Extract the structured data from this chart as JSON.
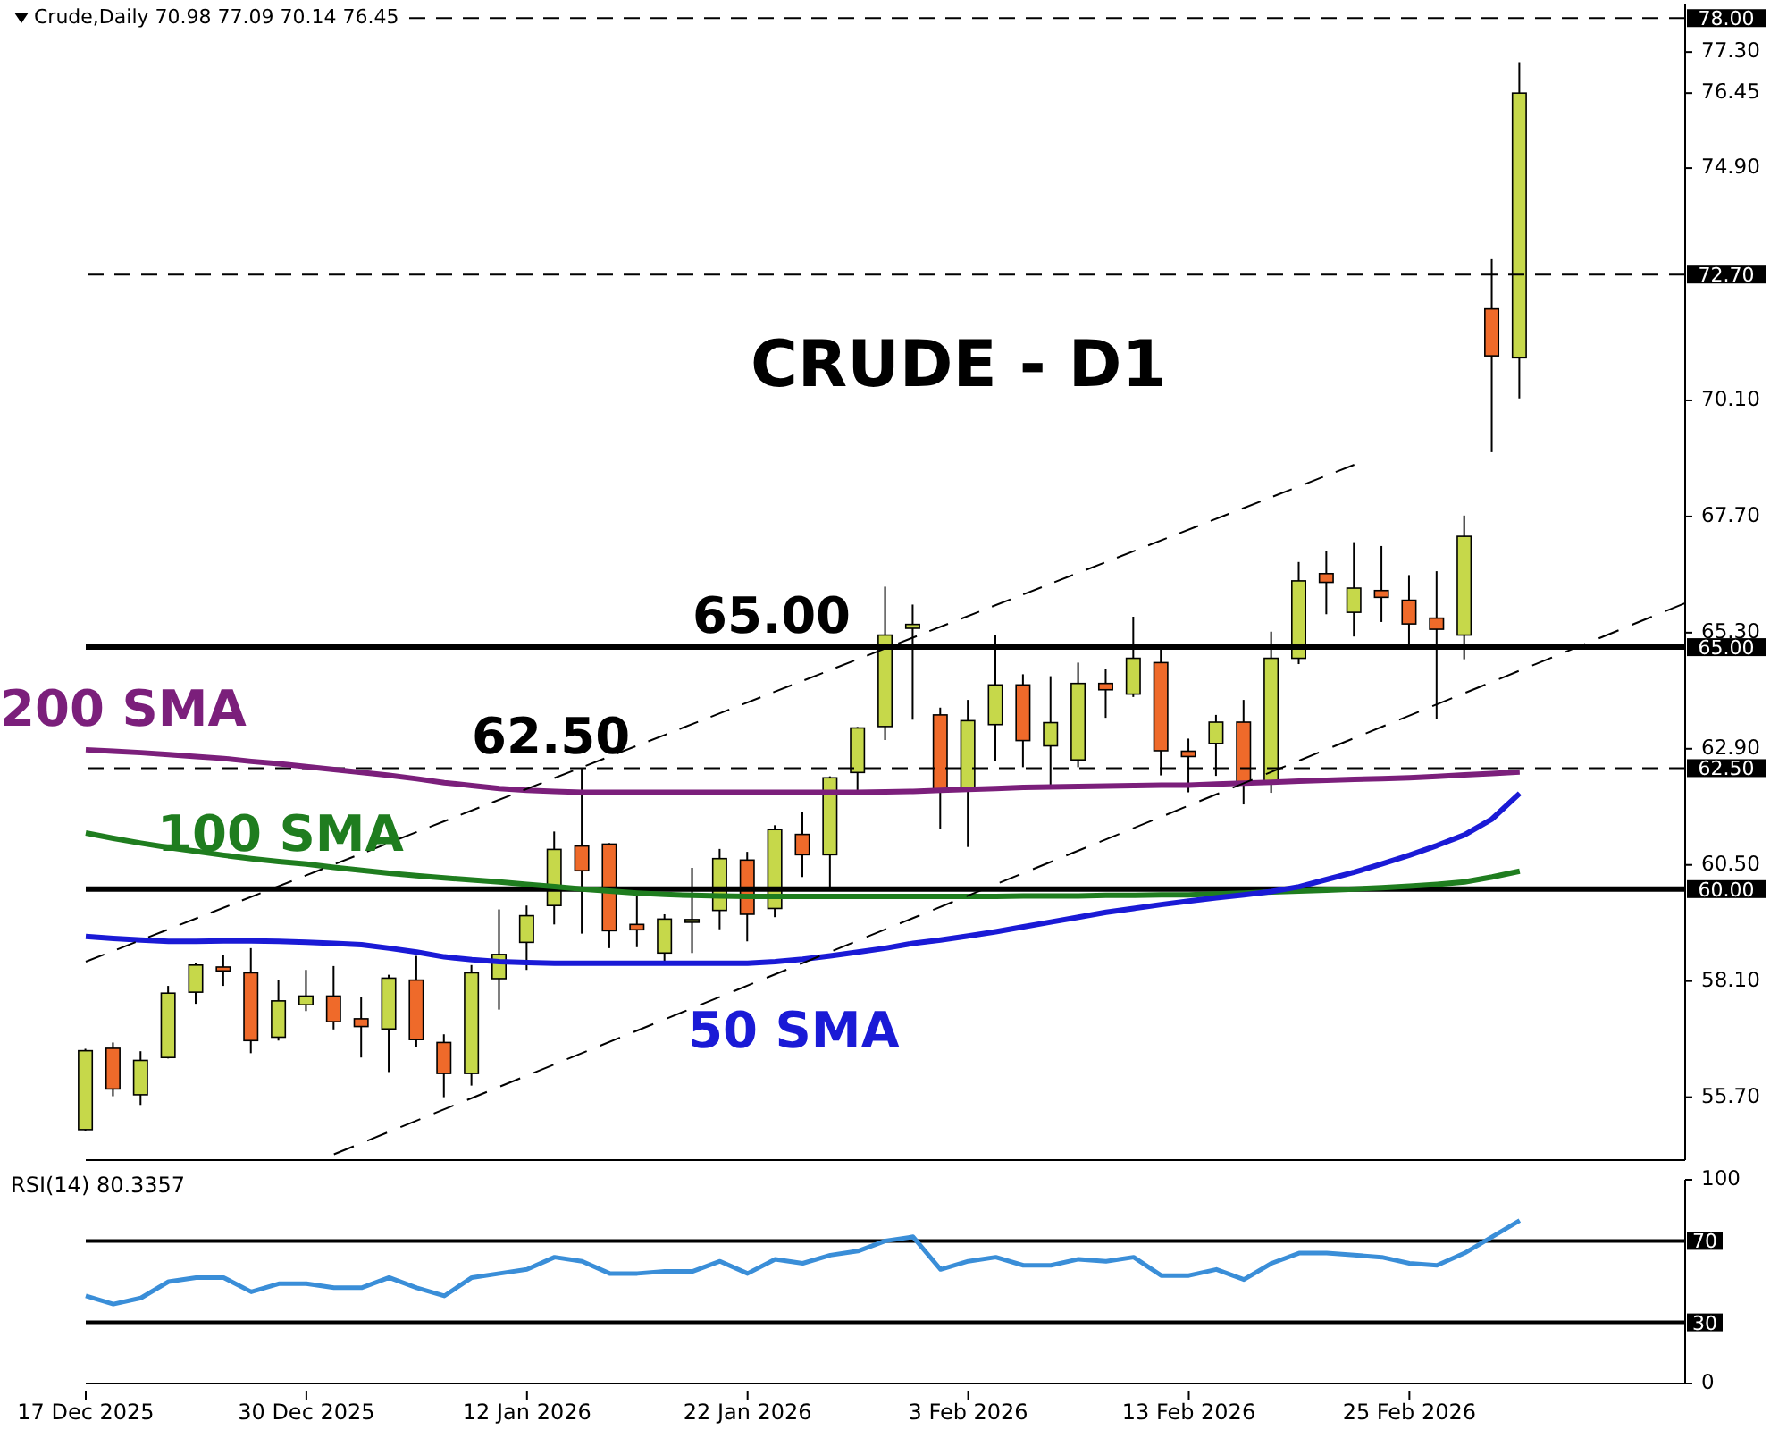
{
  "chart_data": [
    {
      "type": "candlestick",
      "title": "CRUDE - D1",
      "categories": [
        null,
        null,
        null,
        null,
        null,
        null,
        null,
        null,
        null,
        null,
        null,
        null,
        null,
        null,
        null,
        null,
        null,
        null,
        null,
        null,
        null,
        null,
        null,
        null,
        null,
        null,
        null,
        null,
        null,
        null,
        null,
        null,
        null,
        null,
        null,
        null,
        null,
        null,
        null,
        null,
        null,
        null,
        null,
        null,
        null,
        null,
        null,
        null,
        null,
        null,
        null,
        null,
        null,
        null,
        null,
        null,
        null,
        null,
        null
      ],
      "ohlc": [
        [
          55.03,
          56.7,
          55.0,
          56.66
        ],
        [
          56.71,
          56.83,
          55.72,
          55.87
        ],
        [
          55.75,
          56.65,
          55.54,
          56.46
        ],
        [
          56.52,
          58.0,
          56.5,
          57.85
        ],
        [
          57.87,
          58.47,
          57.63,
          58.43
        ],
        [
          58.39,
          58.64,
          58.0,
          58.31
        ],
        [
          58.27,
          58.78,
          56.61,
          56.87
        ],
        [
          56.94,
          58.12,
          56.87,
          57.69
        ],
        [
          57.61,
          58.33,
          57.48,
          57.79
        ],
        [
          57.79,
          58.41,
          57.1,
          57.26
        ],
        [
          57.32,
          57.77,
          56.52,
          57.16
        ],
        [
          57.11,
          58.23,
          56.22,
          58.16
        ],
        [
          58.12,
          58.62,
          56.74,
          56.89
        ],
        [
          56.83,
          57.0,
          55.7,
          56.19
        ],
        [
          56.19,
          58.43,
          55.94,
          58.27
        ],
        [
          58.15,
          59.58,
          57.51,
          58.65
        ],
        [
          58.9,
          59.66,
          58.33,
          59.45
        ],
        [
          59.66,
          61.19,
          59.27,
          60.82
        ],
        [
          60.89,
          62.49,
          59.08,
          60.38
        ],
        [
          60.93,
          60.95,
          58.78,
          59.14
        ],
        [
          59.27,
          59.94,
          58.8,
          59.16
        ],
        [
          58.68,
          59.48,
          58.49,
          59.38
        ],
        [
          59.36,
          60.44,
          58.68,
          59.37
        ],
        [
          59.56,
          60.83,
          59.17,
          60.63
        ],
        [
          60.6,
          60.77,
          58.92,
          59.48
        ],
        [
          59.6,
          61.32,
          59.42,
          61.23
        ],
        [
          61.13,
          61.59,
          60.25,
          60.71
        ],
        [
          60.71,
          62.33,
          60.03,
          62.3
        ],
        [
          62.41,
          63.35,
          62.02,
          63.33
        ],
        [
          63.36,
          66.25,
          63.08,
          65.25
        ],
        [
          65.39,
          65.88,
          63.5,
          65.47
        ],
        [
          63.6,
          63.75,
          61.24,
          62.06
        ],
        [
          62.06,
          63.91,
          60.87,
          63.48
        ],
        [
          63.4,
          65.26,
          62.64,
          64.22
        ],
        [
          64.22,
          64.44,
          62.52,
          63.07
        ],
        [
          62.96,
          64.4,
          62.1,
          63.44
        ],
        [
          62.67,
          64.68,
          62.52,
          64.25
        ],
        [
          64.25,
          64.55,
          63.54,
          64.12
        ],
        [
          64.03,
          65.63,
          63.97,
          64.77
        ],
        [
          64.68,
          64.98,
          62.35,
          62.86
        ],
        [
          62.85,
          63.11,
          62.0,
          62.74
        ],
        [
          63.01,
          63.6,
          62.34,
          63.45
        ],
        [
          63.45,
          63.91,
          61.75,
          62.18
        ],
        [
          62.22,
          65.32,
          61.99,
          64.77
        ],
        [
          64.77,
          66.76,
          64.65,
          66.37
        ],
        [
          66.52,
          66.99,
          65.68,
          66.34
        ],
        [
          65.72,
          67.17,
          65.22,
          66.22
        ],
        [
          66.17,
          67.09,
          65.52,
          66.03
        ],
        [
          65.97,
          66.49,
          65.05,
          65.48
        ],
        [
          65.6,
          66.57,
          63.52,
          65.37
        ],
        [
          65.25,
          67.72,
          64.75,
          67.29
        ],
        [
          71.99,
          73.02,
          69.03,
          71.02
        ],
        [
          70.98,
          77.09,
          70.14,
          76.45
        ],
        null,
        null,
        null,
        null,
        null,
        null
      ],
      "series": [
        {
          "name": "200 SMA",
          "type": "line",
          "color": "#7b1f7b",
          "values": [
            62.88,
            62.85,
            62.82,
            62.78,
            62.74,
            62.7,
            62.64,
            62.59,
            62.53,
            62.47,
            62.41,
            62.35,
            62.28,
            62.2,
            62.14,
            62.08,
            62.04,
            62.02,
            62.0,
            62.0,
            62.0,
            62.0,
            62.0,
            62.0,
            62.0,
            62.0,
            62.0,
            62.0,
            62.0,
            62.01,
            62.02,
            62.04,
            62.06,
            62.08,
            62.1,
            62.11,
            62.12,
            62.13,
            62.14,
            62.15,
            62.15,
            62.17,
            62.19,
            62.21,
            62.23,
            62.25,
            62.27,
            62.28,
            62.3,
            62.33,
            62.36,
            62.39,
            62.42,
            null,
            null,
            null,
            null,
            null,
            null
          ]
        },
        {
          "name": "100 SMA",
          "type": "line",
          "color": "#1f7d1f",
          "values": [
            61.16,
            61.05,
            60.95,
            60.86,
            60.78,
            60.7,
            60.63,
            60.57,
            60.52,
            60.45,
            60.39,
            60.33,
            60.28,
            60.23,
            60.19,
            60.15,
            60.1,
            60.05,
            60.0,
            59.96,
            59.92,
            59.89,
            59.87,
            59.86,
            59.85,
            59.85,
            59.85,
            59.85,
            59.85,
            59.85,
            59.85,
            59.85,
            59.85,
            59.85,
            59.86,
            59.86,
            59.86,
            59.87,
            59.87,
            59.88,
            59.88,
            59.9,
            59.92,
            59.94,
            59.96,
            59.98,
            60.0,
            60.03,
            60.06,
            60.1,
            60.15,
            60.25,
            60.37,
            null,
            null,
            null,
            null,
            null,
            null
          ]
        },
        {
          "name": "50 SMA",
          "type": "line",
          "color": "#1a1ad6",
          "values": [
            59.02,
            58.98,
            58.95,
            58.92,
            58.92,
            58.93,
            58.93,
            58.92,
            58.9,
            58.88,
            58.85,
            58.78,
            58.7,
            58.6,
            58.54,
            58.5,
            58.48,
            58.47,
            58.47,
            58.47,
            58.47,
            58.47,
            58.47,
            58.47,
            58.47,
            58.5,
            58.55,
            58.62,
            58.7,
            58.78,
            58.88,
            58.95,
            59.03,
            59.12,
            59.22,
            59.32,
            59.42,
            59.52,
            59.6,
            59.68,
            59.75,
            59.82,
            59.88,
            59.95,
            60.05,
            60.2,
            60.35,
            60.52,
            60.7,
            60.9,
            61.12,
            61.45,
            61.98,
            null,
            null,
            null,
            null,
            null,
            null
          ]
        },
        {
          "type": "line",
          "color": "#000000",
          "line_style": "dashed",
          "values": [
            58.5,
            null,
            null,
            null,
            null,
            null,
            null,
            null,
            null,
            null,
            null,
            null,
            null,
            null,
            null,
            null,
            null,
            null,
            null,
            null,
            null,
            null,
            null,
            null,
            null,
            null,
            null,
            null,
            null,
            null,
            null,
            null,
            null,
            null,
            null,
            null,
            null,
            null,
            null,
            null,
            null,
            null,
            null,
            null,
            null,
            null,
            68.77,
            null,
            null,
            null,
            null,
            null,
            null,
            null,
            null,
            null,
            null,
            null,
            null
          ]
        },
        {
          "type": "line",
          "color": "#000000",
          "line_style": "dashed",
          "values": [
            null,
            null,
            null,
            null,
            null,
            null,
            null,
            null,
            null,
            54.52,
            null,
            null,
            null,
            null,
            null,
            null,
            null,
            null,
            null,
            null,
            null,
            null,
            null,
            null,
            null,
            null,
            null,
            null,
            null,
            null,
            null,
            null,
            null,
            null,
            null,
            null,
            null,
            null,
            null,
            null,
            null,
            null,
            null,
            null,
            null,
            null,
            null,
            null,
            null,
            null,
            null,
            null,
            null,
            null,
            null,
            null,
            null,
            null,
            65.91
          ]
        }
      ],
      "ylim": [
        54.4,
        78.3
      ],
      "yticks": [
        {
          "value": 55.7,
          "label": "55.70"
        },
        {
          "value": 58.1,
          "label": "58.10"
        },
        {
          "value": 60.5,
          "label": "60.50"
        },
        {
          "value": 62.9,
          "label": "62.90"
        },
        {
          "value": 65.3,
          "label": "65.30"
        },
        {
          "value": 67.7,
          "label": "67.70"
        },
        {
          "value": 70.1,
          "label": "70.10"
        },
        {
          "value": 74.9,
          "label": "74.90"
        },
        {
          "value": 76.45,
          "label": "76.45"
        },
        {
          "value": 77.3,
          "label": "77.30"
        }
      ],
      "ref_lines": [
        {
          "axis": "y",
          "value": 78.0,
          "label": "78.00",
          "color": "#000000",
          "line_style": "dashed"
        },
        {
          "axis": "y",
          "value": 72.7,
          "label": "72.70",
          "color": "#000000",
          "line_style": "dashed"
        },
        {
          "axis": "y",
          "value": 65.0,
          "label": "65.00",
          "color": "#000000",
          "line_style": "solid"
        },
        {
          "axis": "y",
          "value": 62.5,
          "label": "62.50",
          "color": "#000000",
          "line_style": "dashed"
        },
        {
          "axis": "y",
          "value": 60.0,
          "label": "60.00",
          "color": "#000000",
          "line_style": "solid"
        }
      ],
      "annotations": [
        "Crude,Daily 70.98 77.09 70.14 76.45",
        {
          "text": "65.00",
          "y": 65.0
        },
        {
          "text": "62.50",
          "y": 62.5
        }
      ],
      "tick_labels": "y"
    },
    {
      "type": "line",
      "title": "RSI(14) 80.3357",
      "categories": [
        "17 Dec 2025",
        null,
        null,
        null,
        null,
        null,
        null,
        null,
        "30 Dec 2025",
        null,
        null,
        null,
        null,
        null,
        null,
        null,
        "12 Jan 2026",
        null,
        null,
        null,
        null,
        null,
        null,
        null,
        "22 Jan 2026",
        null,
        null,
        null,
        null,
        null,
        null,
        null,
        "3 Feb 2026",
        null,
        null,
        null,
        null,
        null,
        null,
        null,
        "13 Feb 2026",
        null,
        null,
        null,
        null,
        null,
        null,
        null,
        "25 Feb 2026",
        null,
        null,
        null,
        null,
        null,
        null,
        null,
        null,
        null,
        null
      ],
      "series": [
        {
          "color": "#3a8ed8",
          "values": [
            43,
            39,
            42,
            50,
            52,
            52,
            45,
            49,
            49,
            47,
            47,
            52,
            47,
            43,
            52,
            54,
            56,
            62,
            60,
            54,
            54,
            55,
            55,
            60,
            54,
            61,
            59,
            63,
            65,
            70,
            72,
            56,
            60,
            62,
            58,
            58,
            61,
            60,
            62,
            53,
            53,
            56,
            51,
            59,
            64,
            64,
            63,
            62,
            59,
            58,
            64,
            72,
            80,
            null,
            null,
            null,
            null,
            null,
            null
          ]
        }
      ],
      "ylim": [
        0,
        100
      ],
      "yticks": [
        0,
        100
      ],
      "ref_lines": [
        {
          "axis": "y",
          "value": 70,
          "label": "70",
          "color": "#000000",
          "line_style": "solid"
        },
        {
          "axis": "y",
          "value": 30,
          "label": "30",
          "color": "#000000",
          "line_style": "solid"
        }
      ]
    }
  ]
}
